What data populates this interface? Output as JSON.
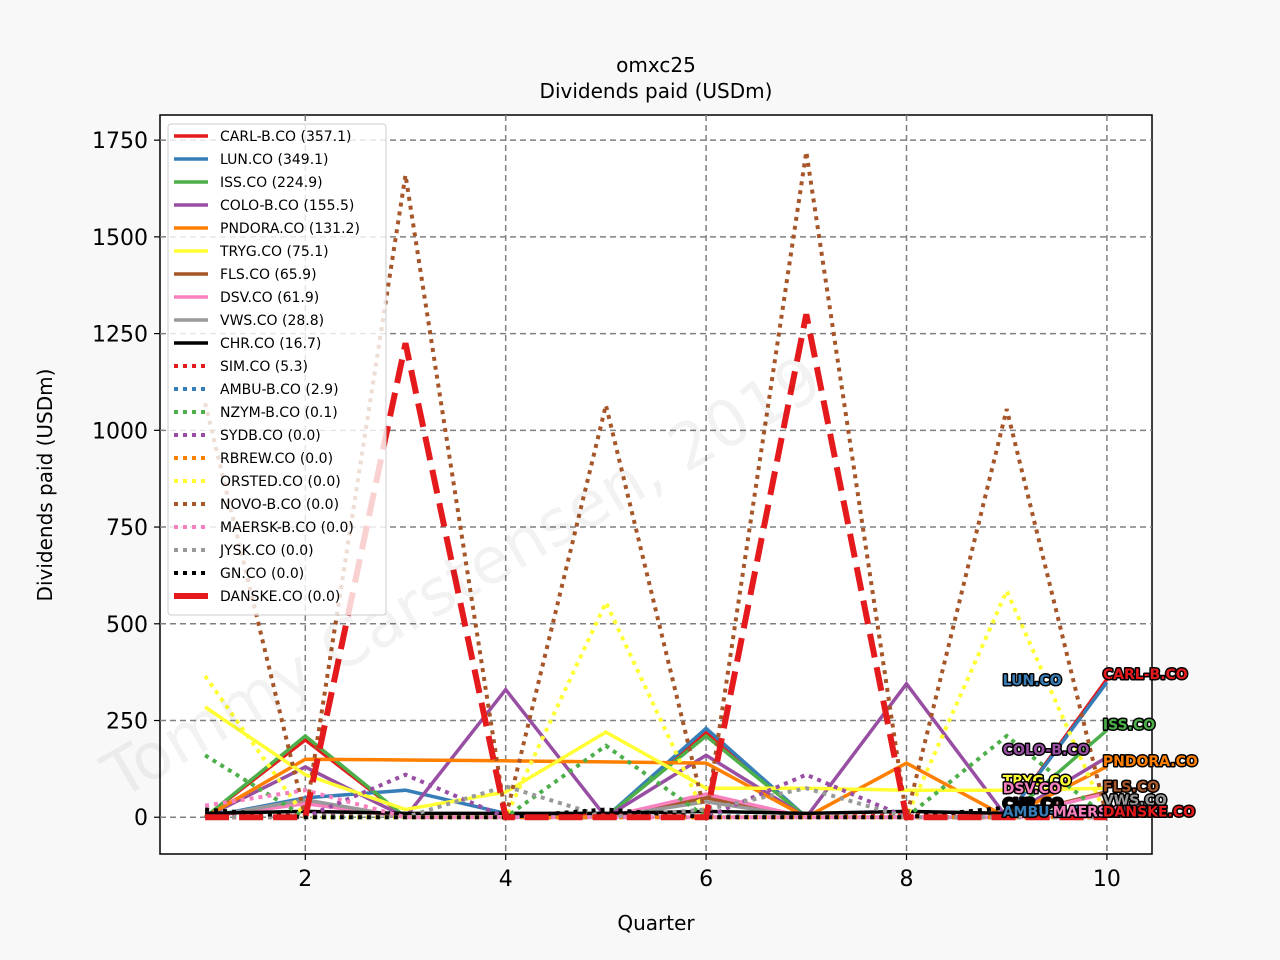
{
  "chart_data": {
    "type": "line",
    "title": "omxc25",
    "subtitle": "Dividends paid (USDm)",
    "xlabel": "Quarter",
    "ylabel": "Dividends paid (USDm)",
    "watermark": "Tommy Carstensen, 2019",
    "xlim": [
      0.55,
      10.45
    ],
    "ylim": [
      -95,
      1815
    ],
    "xticks": [
      2,
      4,
      6,
      8,
      10
    ],
    "yticks": [
      0,
      250,
      500,
      750,
      1000,
      1250,
      1500,
      1750
    ],
    "grid": true,
    "legend_position": "upper-left",
    "x": [
      1,
      2,
      3,
      4,
      5,
      6,
      7,
      8,
      9,
      10
    ],
    "series": [
      {
        "name": "CARL-B.CO (357.1)",
        "label": "CARL-B.CO",
        "color": "#e41a1c",
        "style": "solid",
        "values": [
          0,
          200,
          0,
          0,
          0,
          220,
          0,
          0,
          0,
          357
        ]
      },
      {
        "name": "LUN.CO (349.1)",
        "label": "LUN.CO",
        "color": "#377eb8",
        "style": "solid",
        "values": [
          0,
          50,
          70,
          10,
          0,
          230,
          0,
          0,
          0,
          349
        ]
      },
      {
        "name": "ISS.CO (224.9)",
        "label": "ISS.CO",
        "color": "#4daf4a",
        "style": "solid",
        "values": [
          0,
          210,
          0,
          0,
          0,
          210,
          0,
          0,
          0,
          225
        ]
      },
      {
        "name": "COLO-B.CO (155.5)",
        "label": "COLO-B.CO",
        "color": "#984ea3",
        "style": "solid",
        "values": [
          0,
          130,
          0,
          330,
          0,
          160,
          0,
          345,
          0,
          155
        ]
      },
      {
        "name": "PNDORA.CO (131.2)",
        "label": "PNDORA.CO",
        "color": "#ff7f00",
        "style": "solid",
        "values": [
          0,
          150,
          148,
          146,
          143,
          140,
          0,
          140,
          0,
          131
        ]
      },
      {
        "name": "TRYG.CO (75.1)",
        "label": "TRYG.CO",
        "color": "#ffff33",
        "style": "solid",
        "values": [
          285,
          110,
          20,
          65,
          220,
          75,
          75,
          70,
          70,
          75
        ]
      },
      {
        "name": "FLS.CO (65.9)",
        "label": "FLS.CO",
        "color": "#a65628",
        "style": "solid",
        "values": [
          0,
          40,
          0,
          0,
          0,
          50,
          0,
          0,
          0,
          66
        ]
      },
      {
        "name": "DSV.CO (61.9)",
        "label": "DSV.CO",
        "color": "#f781bf",
        "style": "solid",
        "values": [
          0,
          35,
          0,
          0,
          0,
          60,
          0,
          0,
          0,
          62
        ]
      },
      {
        "name": "VWS.CO (28.8)",
        "label": "VWS.CO",
        "color": "#999999",
        "style": "solid",
        "values": [
          0,
          45,
          0,
          0,
          0,
          40,
          0,
          0,
          0,
          29
        ]
      },
      {
        "name": "CHR.CO (16.7)",
        "label": "CHR.CO",
        "color": "#000000",
        "style": "solid",
        "values": [
          10,
          15,
          10,
          10,
          10,
          15,
          10,
          15,
          10,
          17
        ]
      },
      {
        "name": "SIM.CO (5.3)",
        "label": "SIM.CO",
        "color": "#e41a1c",
        "style": "dotted",
        "values": [
          0,
          5,
          0,
          0,
          5,
          0,
          0,
          5,
          0,
          5
        ]
      },
      {
        "name": "AMBU-B.CO (2.9)",
        "label": "AMBU-B.CO",
        "color": "#377eb8",
        "style": "dotted",
        "values": [
          0,
          3,
          0,
          0,
          0,
          3,
          0,
          0,
          0,
          3
        ]
      },
      {
        "name": "NZYM-B.CO (0.1)",
        "label": "NZYM-B.CO",
        "color": "#4daf4a",
        "style": "dotted",
        "values": [
          160,
          0,
          0,
          0,
          185,
          0,
          0,
          0,
          210,
          0
        ]
      },
      {
        "name": "SYDB.CO (0.0)",
        "label": "SYDB.CO",
        "color": "#984ea3",
        "style": "dotted",
        "values": [
          0,
          0,
          110,
          0,
          0,
          0,
          110,
          0,
          0,
          0
        ]
      },
      {
        "name": "RBREW.CO (0.0)",
        "label": "RBREW.CO",
        "color": "#ff7f00",
        "style": "dotted",
        "values": [
          0,
          0,
          0,
          0,
          0,
          0,
          0,
          0,
          0,
          0
        ]
      },
      {
        "name": "ORSTED.CO (0.0)",
        "label": "ORSTED.CO",
        "color": "#ffff33",
        "style": "dotted",
        "values": [
          365,
          0,
          0,
          0,
          555,
          0,
          0,
          0,
          585,
          0
        ]
      },
      {
        "name": "NOVO-B.CO (0.0)",
        "label": "NOVO-B.CO",
        "color": "#a65628",
        "style": "dotted",
        "values": [
          1070,
          0,
          1660,
          0,
          1065,
          0,
          1720,
          0,
          1055,
          0
        ]
      },
      {
        "name": "MAERSK-B.CO (0.0)",
        "label": "MAERSK-B.CO",
        "color": "#f781bf",
        "style": "dotted",
        "values": [
          30,
          70,
          0,
          0,
          0,
          0,
          0,
          0,
          0,
          0
        ]
      },
      {
        "name": "JYSK.CO (0.0)",
        "label": "JYSK.CO",
        "color": "#999999",
        "style": "dotted",
        "values": [
          0,
          0,
          0,
          80,
          0,
          20,
          75,
          0,
          0,
          0
        ]
      },
      {
        "name": "GN.CO (0.0)",
        "label": "GN.CO",
        "color": "#000000",
        "style": "dotted",
        "values": [
          20,
          0,
          0,
          0,
          20,
          0,
          0,
          0,
          25,
          0
        ]
      },
      {
        "name": "DANSKE.CO (0.0)",
        "label": "DANSKE.CO",
        "color": "#e41a1c",
        "style": "dashed",
        "values": [
          0,
          0,
          1225,
          0,
          0,
          0,
          1300,
          0,
          0,
          0
        ]
      }
    ],
    "end_labels": [
      {
        "series": "LUN.CO",
        "x": 9,
        "y": 355
      },
      {
        "series": "CARL-B.CO",
        "x": 10,
        "y": 370
      },
      {
        "series": "ISS.CO",
        "x": 10,
        "y": 240
      },
      {
        "series": "COLO-B.CO",
        "x": 9,
        "y": 175
      },
      {
        "series": "PNDORA.CO",
        "x": 10,
        "y": 145
      },
      {
        "series": "TRYG.CO",
        "x": 9,
        "y": 95
      },
      {
        "series": "DSV.CO",
        "x": 9,
        "y": 75
      },
      {
        "series": "FLS.CO",
        "x": 10,
        "y": 80
      },
      {
        "series": "VWS.CO",
        "x": 10,
        "y": 45
      },
      {
        "series": "CHR.CO",
        "x": 9,
        "y": 35
      },
      {
        "series": "AMBU-B.CO",
        "x": 9,
        "y": 15
      },
      {
        "series": "MAERSK-B.CO",
        "x": 9.5,
        "y": 15
      },
      {
        "series": "DANSKE.CO",
        "x": 10,
        "y": 15
      }
    ]
  }
}
